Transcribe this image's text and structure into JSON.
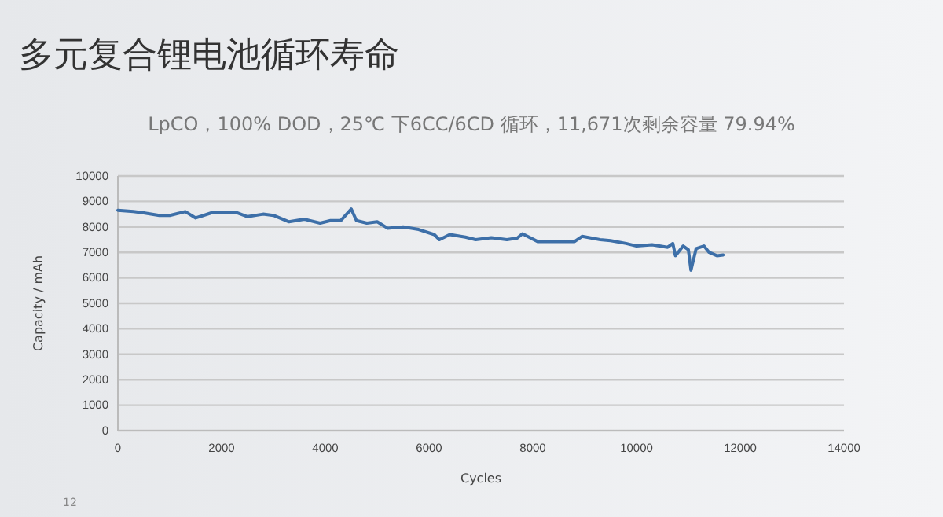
{
  "chart_data": {
    "type": "line",
    "title": "多元复合锂电池循环寿命",
    "subtitle": "LpCO，100% DOD，25℃ 下6CC/6CD 循环，11,671次剩余容量 79.94%",
    "xlabel": "Cycles",
    "ylabel": "Capacity / mAh",
    "annotations": [
      "12"
    ],
    "x": [
      0,
      300,
      500,
      800,
      1000,
      1300,
      1500,
      1800,
      2300,
      2500,
      2800,
      3000,
      3300,
      3600,
      3900,
      4100,
      4300,
      4500,
      4600,
      4800,
      5000,
      5200,
      5500,
      5800,
      6100,
      6200,
      6400,
      6700,
      6900,
      7200,
      7500,
      7700,
      7800,
      8100,
      8400,
      8800,
      8950,
      9300,
      9500,
      9800,
      10000,
      10300,
      10600,
      10700,
      10750,
      10900,
      11000,
      11050,
      11150,
      11300,
      11400,
      11550,
      11671
    ],
    "series": [
      {
        "color": "#3d6fa8",
        "values": [
          8650,
          8600,
          8550,
          8450,
          8450,
          8600,
          8350,
          8550,
          8550,
          8400,
          8500,
          8450,
          8200,
          8300,
          8150,
          8250,
          8250,
          8700,
          8250,
          8150,
          8200,
          7950,
          8000,
          7900,
          7700,
          7500,
          7700,
          7600,
          7500,
          7580,
          7500,
          7560,
          7730,
          7420,
          7420,
          7420,
          7630,
          7500,
          7460,
          7350,
          7250,
          7300,
          7200,
          7350,
          6870,
          7250,
          7100,
          6300,
          7150,
          7250,
          7000,
          6870,
          6900
        ]
      }
    ],
    "xlim": [
      0,
      14000
    ],
    "xticks": [
      0,
      2000,
      4000,
      6000,
      8000,
      10000,
      12000,
      14000
    ],
    "ylim": [
      0,
      10000
    ],
    "yticks": [
      0,
      1000,
      2000,
      3000,
      4000,
      5000,
      6000,
      7000,
      8000,
      9000,
      10000
    ],
    "grid": "y",
    "marker": "none",
    "line_style": "solid"
  }
}
